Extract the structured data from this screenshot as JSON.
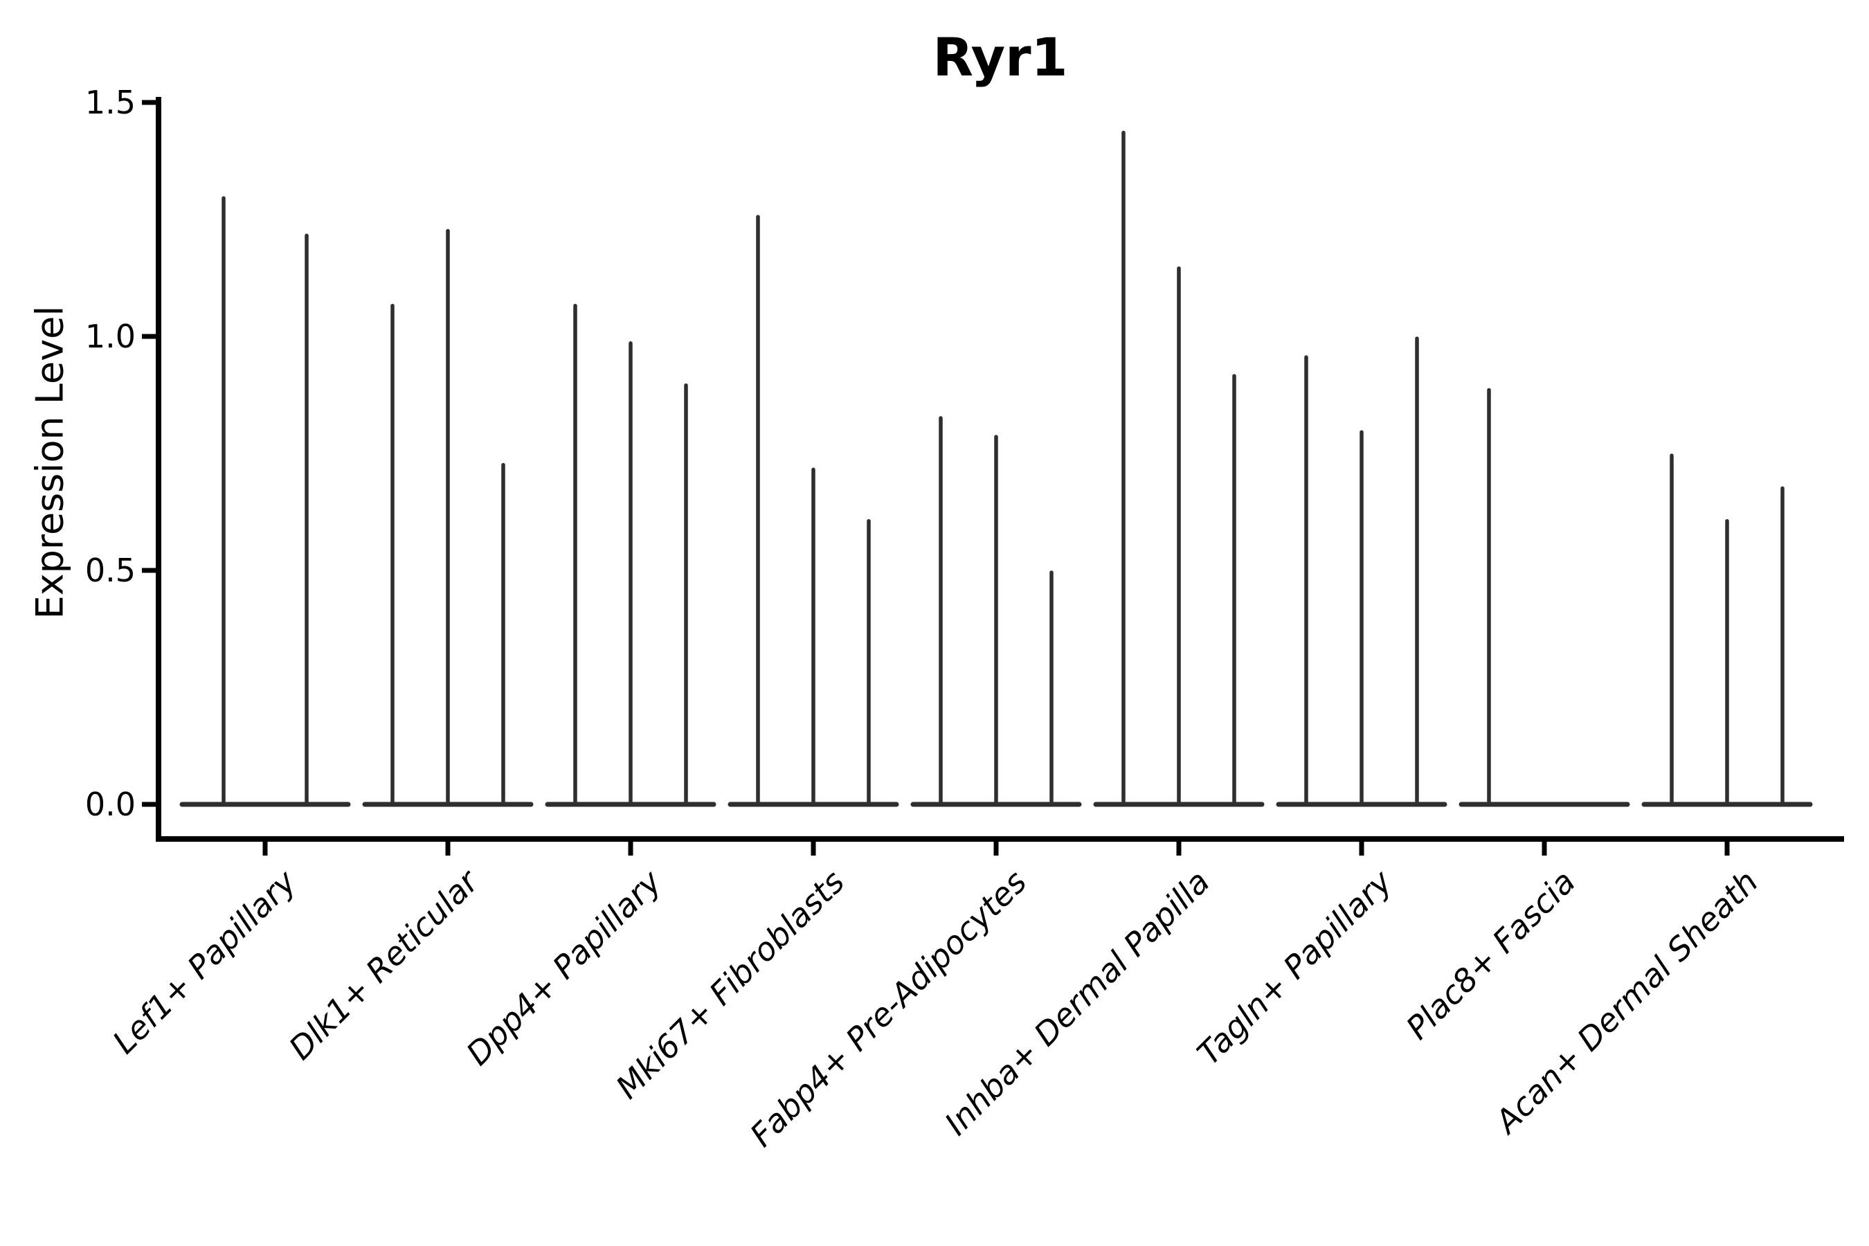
{
  "title": "Ryr1",
  "colors": {
    "violin": "#2e2e2e",
    "axis": "#000000",
    "text": "#000000",
    "background": "#ffffff"
  },
  "chart_data": {
    "type": "violin",
    "title": "Ryr1",
    "xlabel": "",
    "ylabel": "Expression Level",
    "ylim": [
      -0.07,
      1.51
    ],
    "yticks": [
      0.0,
      0.5,
      1.0,
      1.5
    ],
    "ytick_labels": [
      "0.0",
      "0.5",
      "1.0",
      "1.5"
    ],
    "grid": false,
    "legend": false,
    "categories": [
      "Lef1+ Papillary",
      "Dlk1+ Reticular",
      "Dpp4+ Papillary",
      "Mki67+ Fibroblasts",
      "Fabp4+ Pre-Adipocytes",
      "Inhba+ Dermal Papilla",
      "Tagln+ Papillary",
      "Plac8+ Fascia",
      "Acan+ Dermal Sheath"
    ],
    "groups": [
      {
        "category": "Lef1+ Papillary",
        "violin_peaks": [
          1.3,
          1.22
        ]
      },
      {
        "category": "Dlk1+ Reticular",
        "violin_peaks": [
          1.07,
          1.23,
          0.73
        ]
      },
      {
        "category": "Dpp4+ Papillary",
        "violin_peaks": [
          1.07,
          0.99,
          0.9
        ]
      },
      {
        "category": "Mki67+ Fibroblasts",
        "violin_peaks": [
          1.26,
          0.72,
          0.61
        ]
      },
      {
        "category": "Fabp4+ Pre-Adipocytes",
        "violin_peaks": [
          0.83,
          0.79,
          0.5
        ]
      },
      {
        "category": "Inhba+ Dermal Papilla",
        "violin_peaks": [
          1.44,
          1.15,
          0.92
        ]
      },
      {
        "category": "Tagln+ Papillary",
        "violin_peaks": [
          0.96,
          0.8,
          1.0
        ]
      },
      {
        "category": "Plac8+ Fascia",
        "violin_peaks": [
          0.89,
          0.0,
          0.0
        ]
      },
      {
        "category": "Acan+ Dermal Sheath",
        "violin_peaks": [
          0.75,
          0.61,
          0.68
        ]
      }
    ]
  }
}
